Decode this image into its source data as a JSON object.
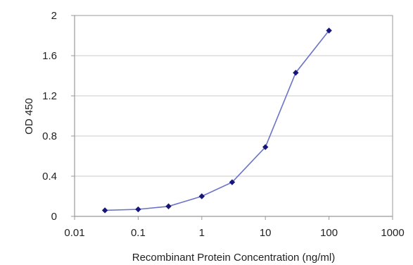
{
  "colors": {
    "series": "#6b73c9",
    "marker": "#17177a",
    "grid": "#c8c8c8",
    "axis": "#999999",
    "frame": "#9a9a9a"
  },
  "chart_data": {
    "type": "line",
    "title": "",
    "xlabel": "Recombinant Protein Concentration (ng/ml)",
    "ylabel": "OD 450",
    "xscale": "log",
    "xlim": [
      0.01,
      1000
    ],
    "ylim": [
      0,
      2
    ],
    "grid": "horizontal",
    "legend": "none",
    "x_ticks": [
      {
        "value": 0.01,
        "label": "0.01"
      },
      {
        "value": 0.1,
        "label": "0.1"
      },
      {
        "value": 1,
        "label": "1"
      },
      {
        "value": 10,
        "label": "10"
      },
      {
        "value": 100,
        "label": "100"
      },
      {
        "value": 1000,
        "label": "1000"
      }
    ],
    "y_ticks": [
      {
        "value": 0,
        "label": "0"
      },
      {
        "value": 0.4,
        "label": "0.4"
      },
      {
        "value": 0.8,
        "label": "0.8"
      },
      {
        "value": 1.2,
        "label": "1.2"
      },
      {
        "value": 1.6,
        "label": "1.6"
      },
      {
        "value": 2,
        "label": "2"
      }
    ],
    "series": [
      {
        "x": [
          0.03,
          0.1,
          0.3,
          1,
          3,
          10,
          30,
          100
        ],
        "y": [
          0.06,
          0.07,
          0.1,
          0.2,
          0.34,
          0.69,
          1.43,
          1.85
        ]
      }
    ]
  }
}
